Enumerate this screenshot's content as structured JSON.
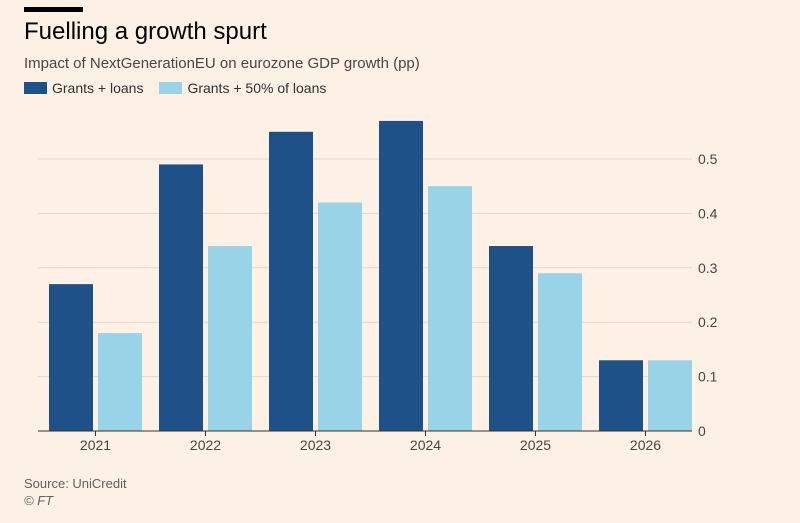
{
  "header": {
    "title": "Fuelling a growth spurt",
    "subtitle": "Impact of NextGenerationEU on eurozone GDP growth (pp)"
  },
  "footer": {
    "source": "Source: UniCredit",
    "copyright": "© FT"
  },
  "colors": {
    "series1": "#1f5189",
    "series2": "#99d3e8",
    "grid": "#e3d6cc",
    "axis": "#33302e"
  },
  "chart_data": {
    "type": "bar",
    "title": "Fuelling a growth spurt",
    "subtitle": "Impact of NextGenerationEU on eurozone GDP growth (pp)",
    "categories": [
      "2021",
      "2022",
      "2023",
      "2024",
      "2025",
      "2026"
    ],
    "series": [
      {
        "name": "Grants + loans",
        "values": [
          0.27,
          0.49,
          0.55,
          0.57,
          0.34,
          0.13
        ]
      },
      {
        "name": "Grants + 50% of loans",
        "values": [
          0.18,
          0.34,
          0.42,
          0.45,
          0.29,
          0.13
        ]
      }
    ],
    "yticks": [
      "0",
      "0.1",
      "0.2",
      "0.3",
      "0.4",
      "0.5"
    ],
    "ylim": [
      0,
      0.6
    ],
    "grid": true,
    "legend_position": "top-left",
    "y_axis_side": "right"
  }
}
